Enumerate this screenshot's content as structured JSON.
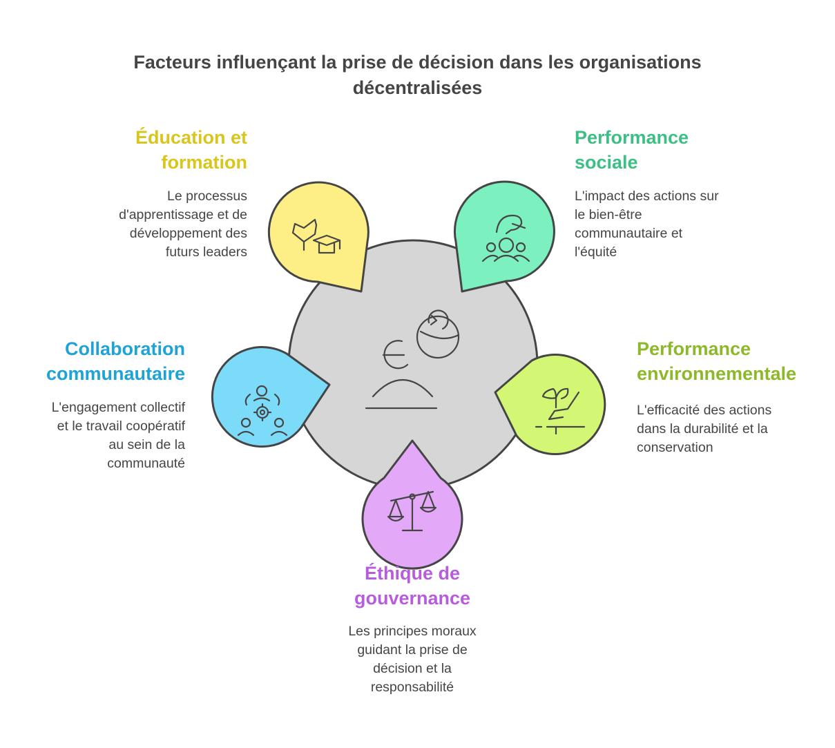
{
  "title": {
    "line1": "Facteurs influençant la prise de décision dans les organisations",
    "line2": "décentralisées"
  },
  "factors": {
    "education": {
      "title": [
        "Éducation et",
        "formation"
      ],
      "description": [
        "Le processus",
        "d'apprentissage et de",
        "développement des",
        "futurs leaders"
      ],
      "color": "#D9C61C",
      "fill": "#FDEF86",
      "icon": "person-graduation-cap-icon"
    },
    "social": {
      "title": [
        "Performance",
        "sociale"
      ],
      "description": [
        "L'impact des actions sur",
        "le bien-être",
        "communautaire et",
        "l'équité"
      ],
      "color": "#3DBE85",
      "fill": "#7DF0C0",
      "icon": "hand-over-community-icon"
    },
    "collaboration": {
      "title": [
        "Collaboration",
        "communautaire"
      ],
      "description": [
        "L'engagement collectif",
        "et le travail coopératif",
        "au sein de la",
        "communauté"
      ],
      "color": "#1FA3D6",
      "fill": "#7DDBFA",
      "icon": "people-gear-icon"
    },
    "environment": {
      "title": [
        "Performance",
        "environnementale"
      ],
      "description": [
        "L'efficacité des actions",
        "dans la durabilité et la",
        "conservation"
      ],
      "color": "#8DB82A",
      "fill": "#D3F775",
      "icon": "hand-plant-sprout-icon"
    },
    "ethics": {
      "title": [
        "Éthique de",
        "gouvernance"
      ],
      "description": [
        "Les principes moraux",
        "guidant la prise de",
        "décision et la",
        "responsabilité"
      ],
      "color": "#B85CDF",
      "fill": "#E3A8F8",
      "icon": "balance-scale-icon"
    }
  },
  "center": {
    "fill": "#D6D6D6",
    "icon": "person-thinking-cycle-icon"
  },
  "stroke_color": "#454545"
}
